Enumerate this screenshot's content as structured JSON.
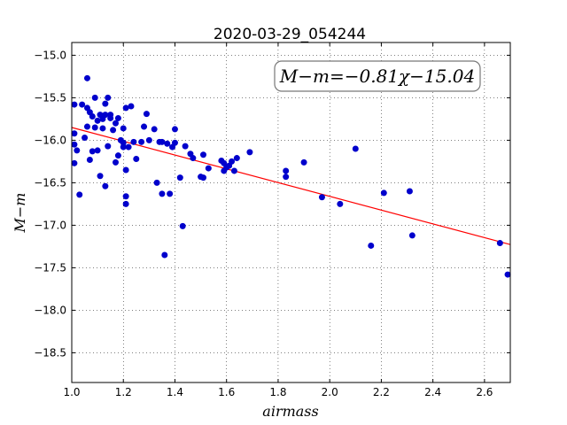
{
  "chart_data": {
    "type": "scatter",
    "title": "2020-03-29_054244",
    "xlabel": "airmass",
    "ylabel": "M−m",
    "annotation": "M−m=−0.81χ−15.04",
    "xlim": [
      1.0,
      2.7
    ],
    "ylim": [
      -18.85,
      -14.85
    ],
    "y_inverted": true,
    "x_ticks": [
      1.0,
      1.2,
      1.4,
      1.6,
      1.8,
      2.0,
      2.2,
      2.4,
      2.6
    ],
    "x_tick_labels": [
      "1.0",
      "1.2",
      "1.4",
      "1.6",
      "1.8",
      "2.0",
      "2.2",
      "2.4",
      "2.6"
    ],
    "y_ticks": [
      -15.0,
      -15.5,
      -16.0,
      -16.5,
      -17.0,
      -17.5,
      -18.0,
      -18.5
    ],
    "y_tick_labels": [
      "−15.0",
      "−15.5",
      "−16.0",
      "−16.5",
      "−17.0",
      "−17.5",
      "−18.0",
      "−18.5"
    ],
    "grid": true,
    "fit": {
      "slope": -0.81,
      "intercept": -15.04,
      "color": "#ff0000"
    },
    "marker_color": "#0000cc",
    "points": [
      [
        1.01,
        -15.58
      ],
      [
        1.01,
        -15.92
      ],
      [
        1.01,
        -16.05
      ],
      [
        1.01,
        -16.27
      ],
      [
        1.02,
        -16.12
      ],
      [
        1.03,
        -16.64
      ],
      [
        1.04,
        -15.58
      ],
      [
        1.05,
        -15.97
      ],
      [
        1.06,
        -15.27
      ],
      [
        1.06,
        -15.62
      ],
      [
        1.06,
        -15.84
      ],
      [
        1.07,
        -15.67
      ],
      [
        1.07,
        -16.23
      ],
      [
        1.08,
        -15.72
      ],
      [
        1.08,
        -16.13
      ],
      [
        1.09,
        -15.85
      ],
      [
        1.09,
        -15.5
      ],
      [
        1.1,
        -16.12
      ],
      [
        1.1,
        -15.77
      ],
      [
        1.11,
        -16.42
      ],
      [
        1.11,
        -15.7
      ],
      [
        1.12,
        -15.75
      ],
      [
        1.12,
        -15.86
      ],
      [
        1.13,
        -15.7
      ],
      [
        1.13,
        -16.54
      ],
      [
        1.13,
        -15.57
      ],
      [
        1.14,
        -15.5
      ],
      [
        1.14,
        -16.07
      ],
      [
        1.15,
        -15.7
      ],
      [
        1.15,
        -15.74
      ],
      [
        1.16,
        -15.88
      ],
      [
        1.17,
        -16.26
      ],
      [
        1.17,
        -15.8
      ],
      [
        1.18,
        -16.18
      ],
      [
        1.18,
        -15.74
      ],
      [
        1.19,
        -16.0
      ],
      [
        1.2,
        -16.08
      ],
      [
        1.2,
        -16.03
      ],
      [
        1.2,
        -15.86
      ],
      [
        1.21,
        -16.35
      ],
      [
        1.21,
        -16.66
      ],
      [
        1.21,
        -16.75
      ],
      [
        1.21,
        -15.62
      ],
      [
        1.22,
        -16.08
      ],
      [
        1.23,
        -15.6
      ],
      [
        1.24,
        -16.02
      ],
      [
        1.25,
        -16.22
      ],
      [
        1.27,
        -16.02
      ],
      [
        1.28,
        -15.84
      ],
      [
        1.29,
        -15.69
      ],
      [
        1.3,
        -16.0
      ],
      [
        1.32,
        -15.87
      ],
      [
        1.33,
        -16.5
      ],
      [
        1.34,
        -16.02
      ],
      [
        1.35,
        -16.02
      ],
      [
        1.35,
        -16.63
      ],
      [
        1.36,
        -17.35
      ],
      [
        1.37,
        -16.04
      ],
      [
        1.38,
        -16.63
      ],
      [
        1.39,
        -16.08
      ],
      [
        1.4,
        -15.87
      ],
      [
        1.4,
        -16.03
      ],
      [
        1.42,
        -16.44
      ],
      [
        1.43,
        -17.01
      ],
      [
        1.44,
        -16.07
      ],
      [
        1.46,
        -16.16
      ],
      [
        1.47,
        -16.21
      ],
      [
        1.5,
        -16.43
      ],
      [
        1.51,
        -16.17
      ],
      [
        1.51,
        -16.44
      ],
      [
        1.53,
        -16.33
      ],
      [
        1.58,
        -16.24
      ],
      [
        1.59,
        -16.27
      ],
      [
        1.59,
        -16.36
      ],
      [
        1.6,
        -16.32
      ],
      [
        1.61,
        -16.3
      ],
      [
        1.62,
        -16.25
      ],
      [
        1.63,
        -16.36
      ],
      [
        1.64,
        -16.21
      ],
      [
        1.69,
        -16.14
      ],
      [
        1.83,
        -16.43
      ],
      [
        1.83,
        -16.36
      ],
      [
        1.9,
        -16.26
      ],
      [
        1.97,
        -16.67
      ],
      [
        2.04,
        -16.75
      ],
      [
        2.1,
        -16.1
      ],
      [
        2.16,
        -17.24
      ],
      [
        2.21,
        -16.62
      ],
      [
        2.31,
        -16.6
      ],
      [
        2.32,
        -17.12
      ],
      [
        2.66,
        -17.21
      ],
      [
        2.69,
        -17.58
      ]
    ]
  }
}
